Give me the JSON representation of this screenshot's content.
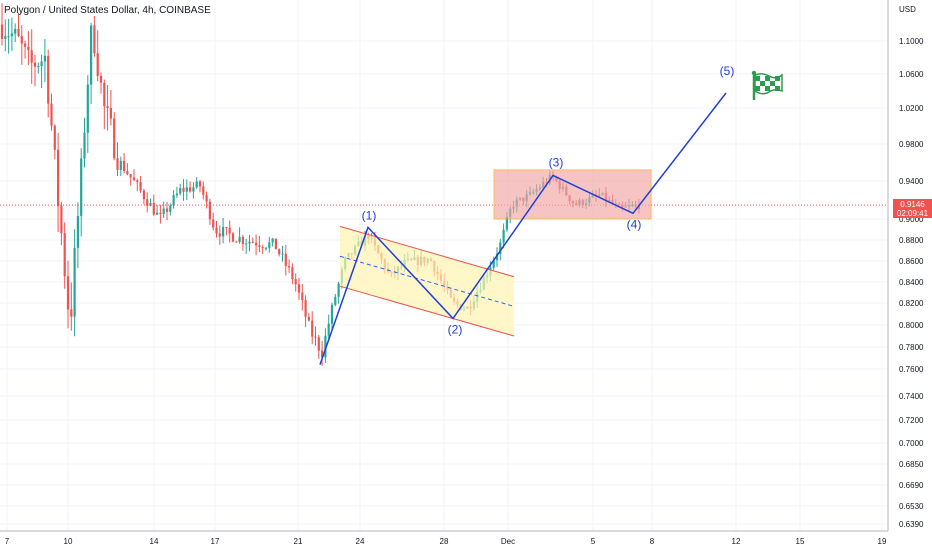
{
  "header": {
    "title": "Polygon / United States Dollar, 4h, COINBASE"
  },
  "price_tag": {
    "price": "0.9146",
    "countdown": "02:09:41"
  },
  "colors": {
    "up": "#26a69a",
    "down": "#ef5350",
    "wave": "#1e40d8",
    "channel_fill": "#fff3b0",
    "box_fill": "#f4a6a6",
    "box_border": "#ff9800",
    "flag": "#2e9c4f"
  },
  "chart_data": {
    "type": "candlestick",
    "currency_label": "USD",
    "y_ticks": [
      "1.1000",
      "1.0600",
      "1.0200",
      "0.9800",
      "0.9400",
      "0.9000",
      "0.8800",
      "0.8600",
      "0.8400",
      "0.8200",
      "0.8000",
      "0.7800",
      "0.7600",
      "0.7400",
      "0.7200",
      "0.7000",
      "0.6850",
      "0.6690",
      "0.6530",
      "0.6390"
    ],
    "x_ticks": [
      "7",
      "10",
      "14",
      "17",
      "21",
      "24",
      "28",
      "Dec",
      "5",
      "8",
      "12",
      "15",
      "19"
    ],
    "current_price": 0.9146,
    "waves": [
      {
        "label": "(1)",
        "price": 0.892
      },
      {
        "label": "(2)",
        "price": 0.806
      },
      {
        "label": "(3)",
        "price": 0.946
      },
      {
        "label": "(4)",
        "price": 0.906
      },
      {
        "label": "(5)",
        "price": 1.04
      }
    ],
    "start_low": 0.764
  }
}
